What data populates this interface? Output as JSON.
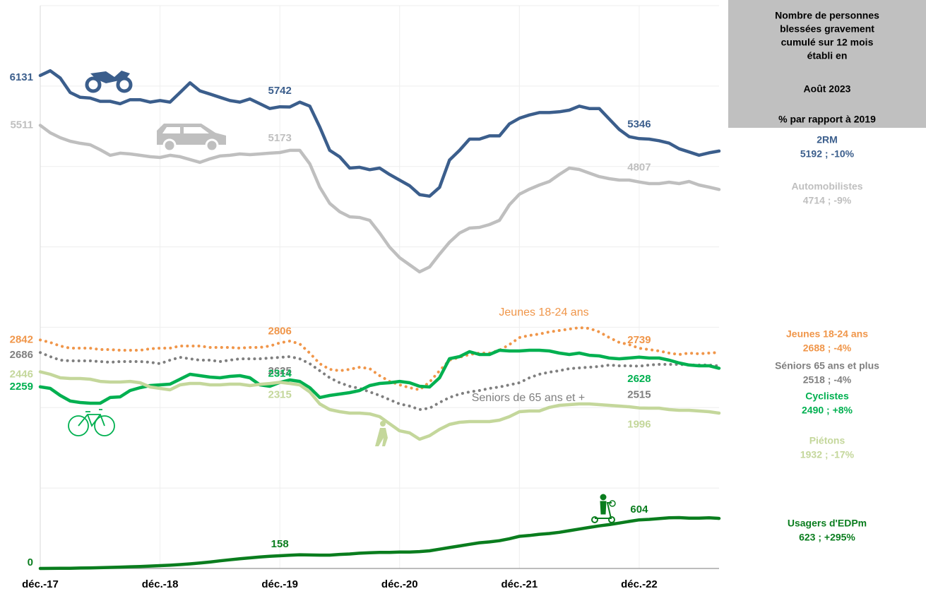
{
  "chart_data": {
    "type": "line",
    "categories": [
      "déc.-17",
      null,
      null,
      null,
      null,
      null,
      null,
      null,
      null,
      null,
      null,
      null,
      "déc.-18",
      null,
      null,
      null,
      null,
      null,
      null,
      null,
      null,
      null,
      null,
      null,
      "déc.-19",
      null,
      null,
      null,
      null,
      null,
      null,
      null,
      null,
      null,
      null,
      null,
      "déc.-20",
      null,
      null,
      null,
      null,
      null,
      null,
      null,
      null,
      null,
      null,
      null,
      "déc.-21",
      null,
      null,
      null,
      null,
      null,
      null,
      null,
      null,
      null,
      null,
      null,
      "déc.-22",
      null,
      null,
      null,
      null,
      null,
      null,
      null,
      null
    ],
    "ylim": [
      0,
      7000
    ],
    "yticks": [
      0,
      1000,
      2000,
      3000,
      4000,
      5000,
      6000,
      7000
    ],
    "grid": true,
    "label_indices": [
      0,
      24,
      60
    ],
    "series": [
      {
        "name": "2RM",
        "summary": "5192 ; -10%",
        "color": "#3b5e8c",
        "style": "solid",
        "values": [
          6131,
          6190,
          6100,
          5920,
          5860,
          5850,
          5810,
          5810,
          5780,
          5830,
          5830,
          5800,
          5820,
          5800,
          5920,
          6040,
          5940,
          5900,
          5860,
          5820,
          5800,
          5840,
          5780,
          5720,
          5742,
          5740,
          5800,
          5750,
          5490,
          5200,
          5120,
          4980,
          4990,
          4960,
          4980,
          4900,
          4830,
          4760,
          4650,
          4630,
          4740,
          5080,
          5200,
          5340,
          5340,
          5380,
          5380,
          5530,
          5600,
          5640,
          5670,
          5670,
          5680,
          5700,
          5750,
          5720,
          5720,
          5590,
          5460,
          5370,
          5346,
          5340,
          5320,
          5290,
          5220,
          5180,
          5140,
          5170,
          5192
        ]
      },
      {
        "name": "Automobilistes",
        "summary": "4714 ; -9%",
        "color": "#bfbfbf",
        "style": "solid",
        "values": [
          5511,
          5419,
          5358,
          5314,
          5288,
          5270,
          5208,
          5139,
          5165,
          5156,
          5139,
          5121,
          5112,
          5139,
          5121,
          5086,
          5051,
          5095,
          5130,
          5139,
          5156,
          5147,
          5156,
          5165,
          5173,
          5200,
          5200,
          5033,
          4743,
          4541,
          4436,
          4374,
          4365,
          4330,
          4172,
          3996,
          3865,
          3777,
          3689,
          3750,
          3909,
          4058,
          4172,
          4233,
          4242,
          4277,
          4330,
          4523,
          4655,
          4717,
          4769,
          4813,
          4901,
          4980,
          4962,
          4918,
          4874,
          4848,
          4831,
          4831,
          4807,
          4787,
          4787,
          4804,
          4787,
          4813,
          4769,
          4743,
          4714
        ]
      },
      {
        "name": "Jeunes 18-24 ans",
        "summary": "2688 ; -4%",
        "color": "#f0964a",
        "style": "dotted",
        "values": [
          2842,
          2811,
          2767,
          2740,
          2740,
          2740,
          2723,
          2723,
          2714,
          2714,
          2714,
          2732,
          2740,
          2740,
          2767,
          2767,
          2767,
          2749,
          2749,
          2749,
          2740,
          2749,
          2749,
          2767,
          2806,
          2828,
          2793,
          2679,
          2547,
          2477,
          2459,
          2477,
          2503,
          2486,
          2398,
          2327,
          2284,
          2248,
          2222,
          2319,
          2459,
          2591,
          2626,
          2661,
          2679,
          2679,
          2714,
          2784,
          2872,
          2898,
          2916,
          2942,
          2960,
          2977,
          2995,
          2986,
          2942,
          2872,
          2811,
          2784,
          2739,
          2723,
          2705,
          2679,
          2661,
          2679,
          2670,
          2679,
          2688
        ]
      },
      {
        "name": "Séniors 65 ans et plus",
        "summary": "2518 ; -4%",
        "color": "#7f7f7f",
        "style": "dotted",
        "values": [
          2686,
          2635,
          2591,
          2582,
          2582,
          2582,
          2573,
          2565,
          2573,
          2573,
          2573,
          2565,
          2547,
          2591,
          2626,
          2608,
          2591,
          2591,
          2573,
          2591,
          2608,
          2608,
          2608,
          2617,
          2625,
          2635,
          2608,
          2547,
          2459,
          2371,
          2310,
          2266,
          2240,
          2196,
          2152,
          2099,
          2046,
          2020,
          1976,
          1994,
          2064,
          2126,
          2169,
          2196,
          2213,
          2240,
          2257,
          2284,
          2310,
          2371,
          2415,
          2442,
          2459,
          2486,
          2494,
          2503,
          2512,
          2530,
          2521,
          2521,
          2515,
          2530,
          2538,
          2538,
          2538,
          2530,
          2530,
          2530,
          2518
        ]
      },
      {
        "name": "Cyclistes",
        "summary": "2490 ; +8%",
        "color": "#00b050",
        "style": "solid",
        "values": [
          2259,
          2240,
          2152,
          2082,
          2064,
          2055,
          2055,
          2126,
          2134,
          2213,
          2248,
          2275,
          2284,
          2292,
          2354,
          2415,
          2398,
          2380,
          2371,
          2389,
          2398,
          2371,
          2284,
          2266,
          2314,
          2345,
          2327,
          2248,
          2126,
          2152,
          2169,
          2187,
          2213,
          2275,
          2301,
          2310,
          2327,
          2310,
          2266,
          2257,
          2371,
          2609,
          2635,
          2696,
          2661,
          2661,
          2714,
          2705,
          2705,
          2714,
          2714,
          2705,
          2679,
          2661,
          2679,
          2652,
          2644,
          2617,
          2608,
          2617,
          2628,
          2617,
          2617,
          2591,
          2556,
          2530,
          2521,
          2521,
          2490
        ]
      },
      {
        "name": "Piétons",
        "summary": "1932 ; -17%",
        "color": "#c4d79b",
        "style": "solid",
        "values": [
          2446,
          2415,
          2371,
          2363,
          2363,
          2354,
          2327,
          2319,
          2319,
          2327,
          2310,
          2257,
          2240,
          2222,
          2284,
          2301,
          2301,
          2284,
          2284,
          2292,
          2292,
          2275,
          2290,
          2300,
          2315,
          2301,
          2284,
          2196,
          2046,
          1976,
          1950,
          1932,
          1932,
          1923,
          1888,
          1800,
          1712,
          1686,
          1607,
          1651,
          1730,
          1792,
          1818,
          1827,
          1827,
          1827,
          1844,
          1888,
          1950,
          1959,
          1959,
          2003,
          2029,
          2038,
          2046,
          2046,
          2038,
          2029,
          2020,
          2011,
          1996,
          1994,
          1994,
          1976,
          1967,
          1967,
          1959,
          1950,
          1932
        ]
      },
      {
        "name": "Usagers d'EDPm",
        "summary": "623 ; +295%",
        "color": "#0a7d1e",
        "style": "solid",
        "values": [
          0,
          1,
          2,
          3,
          5,
          7,
          10,
          13,
          17,
          21,
          25,
          30,
          35,
          40,
          48,
          57,
          68,
          80,
          95,
          108,
          120,
          132,
          143,
          152,
          158,
          165,
          170,
          168,
          166,
          166,
          175,
          180,
          190,
          195,
          200,
          200,
          205,
          205,
          210,
          220,
          240,
          260,
          280,
          300,
          320,
          330,
          345,
          370,
          400,
          410,
          425,
          435,
          450,
          470,
          490,
          510,
          530,
          545,
          565,
          585,
          604,
          610,
          620,
          630,
          632,
          625,
          625,
          630,
          623
        ]
      }
    ],
    "annotations": [
      "Jeunes 18-24 ans",
      "Seniors de 65 ans et +"
    ],
    "side_panel": {
      "heading": [
        "Nombre de personnes",
        "blessées gravement",
        "cumulé sur 12 mois",
        "établi en"
      ],
      "date": "Août 2023",
      "note": "% par rapport à 2019"
    }
  }
}
